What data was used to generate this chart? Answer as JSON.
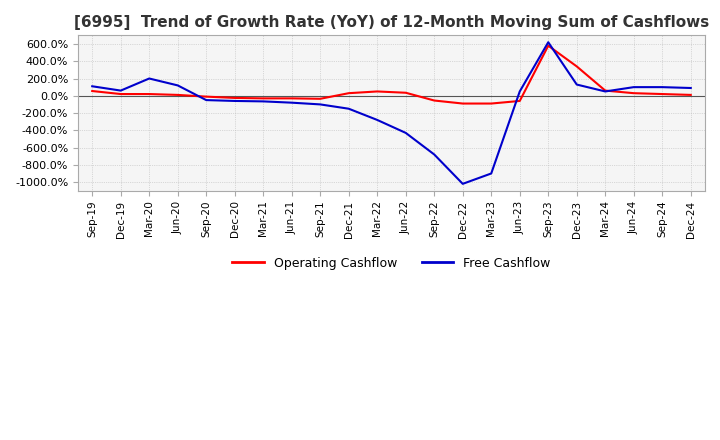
{
  "title": "[6995]  Trend of Growth Rate (YoY) of 12-Month Moving Sum of Cashflows",
  "title_fontsize": 11,
  "background_color": "#ffffff",
  "plot_bg_color": "#f5f5f5",
  "grid_color": "#bbbbbb",
  "operating_color": "#ff0000",
  "free_color": "#0000cc",
  "ylim": [
    -1100,
    700
  ],
  "yticks": [
    600,
    400,
    200,
    0,
    -200,
    -400,
    -600,
    -800,
    -1000
  ],
  "dates": [
    "Sep-19",
    "Dec-19",
    "Mar-20",
    "Jun-20",
    "Sep-20",
    "Dec-20",
    "Mar-21",
    "Jun-21",
    "Sep-21",
    "Dec-21",
    "Mar-22",
    "Jun-22",
    "Sep-22",
    "Dec-22",
    "Mar-23",
    "Jun-23",
    "Sep-23",
    "Dec-23",
    "Mar-24",
    "Jun-24",
    "Sep-24",
    "Dec-24"
  ],
  "operating_cashflow": [
    55,
    20,
    20,
    10,
    -10,
    -25,
    -30,
    -30,
    -35,
    30,
    50,
    35,
    -55,
    -90,
    -90,
    -60,
    580,
    340,
    60,
    30,
    20,
    10
  ],
  "free_cashflow": [
    110,
    60,
    200,
    120,
    -50,
    -60,
    -65,
    -80,
    -100,
    -150,
    -280,
    -430,
    -680,
    -1020,
    -900,
    50,
    620,
    130,
    50,
    100,
    100,
    90
  ],
  "legend_labels": [
    "Operating Cashflow",
    "Free Cashflow"
  ],
  "legend_colors": [
    "#ff0000",
    "#0000cc"
  ]
}
